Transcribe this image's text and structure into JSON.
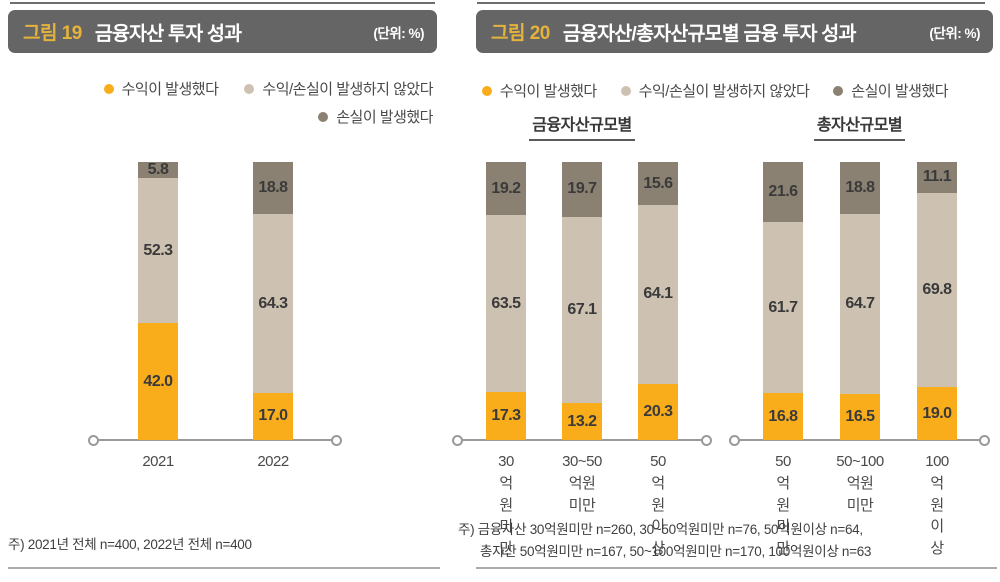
{
  "colors": {
    "header_bg": "#656565",
    "figure_label_gold": "#e5b33c",
    "header_text": "#ffffff",
    "series_profit": "#f9ad1b",
    "series_neutral": "#cdc1b1",
    "series_loss": "#8a8172",
    "axis_line": "#9a9a9a",
    "value_label": "#3a3a3a"
  },
  "chart_data": [
    {
      "type": "bar",
      "stacked": true,
      "figure_label": "그림 19",
      "title": "금융자산 투자 성과",
      "unit": "(단위: %)",
      "legend": [
        "수익이 발생했다",
        "수익/손실이 발생하지 않았다",
        "손실이 발생했다"
      ],
      "colors": [
        "#f9ad1b",
        "#cdc1b1",
        "#8a8172"
      ],
      "ylim": [
        0,
        100
      ],
      "grid": false,
      "groups": [
        {
          "name": "",
          "categories": [
            "2021",
            "2022"
          ],
          "series": [
            {
              "name": "수익이 발생했다",
              "values": [
                42.0,
                17.0
              ]
            },
            {
              "name": "수익/손실이 발생하지 않았다",
              "values": [
                52.3,
                64.3
              ]
            },
            {
              "name": "손실이 발생했다",
              "values": [
                5.8,
                18.8
              ]
            }
          ]
        }
      ],
      "notes": [
        "주) 2021년 전체 n=400, 2022년 전체 n=400"
      ]
    },
    {
      "type": "bar",
      "stacked": true,
      "figure_label": "그림 20",
      "title": "금융자산/총자산규모별 금융 투자 성과",
      "unit": "(단위: %)",
      "legend": [
        "수익이 발생했다",
        "수익/손실이 발생하지 않았다",
        "손실이 발생했다"
      ],
      "colors": [
        "#f9ad1b",
        "#cdc1b1",
        "#8a8172"
      ],
      "ylim": [
        0,
        100
      ],
      "grid": false,
      "groups": [
        {
          "name": "금융자산규모별",
          "categories": [
            "30억원\n미만",
            "30~50억원\n미만",
            "50억원\n이상"
          ],
          "series": [
            {
              "name": "수익이 발생했다",
              "values": [
                17.3,
                13.2,
                20.3
              ]
            },
            {
              "name": "수익/손실이 발생하지 않았다",
              "values": [
                63.5,
                67.1,
                64.1
              ]
            },
            {
              "name": "손실이 발생했다",
              "values": [
                19.2,
                19.7,
                15.6
              ]
            }
          ]
        },
        {
          "name": "총자산규모별",
          "categories": [
            "50억원\n미만",
            "50~100억원\n미만",
            "100억원\n이상"
          ],
          "series": [
            {
              "name": "수익이 발생했다",
              "values": [
                16.8,
                16.5,
                19.0
              ]
            },
            {
              "name": "수익/손실이 발생하지 않았다",
              "values": [
                61.7,
                64.7,
                69.8
              ]
            },
            {
              "name": "손실이 발생했다",
              "values": [
                21.6,
                18.8,
                11.1
              ]
            }
          ]
        }
      ],
      "notes": [
        "주) 금융자산 30억원미만 n=260, 30~50억원미만 n=76, 50억원이상 n=64,",
        "총자산 50억원미만 n=167, 50~100억원미만 n=170, 100억원이상 n=63"
      ]
    }
  ]
}
